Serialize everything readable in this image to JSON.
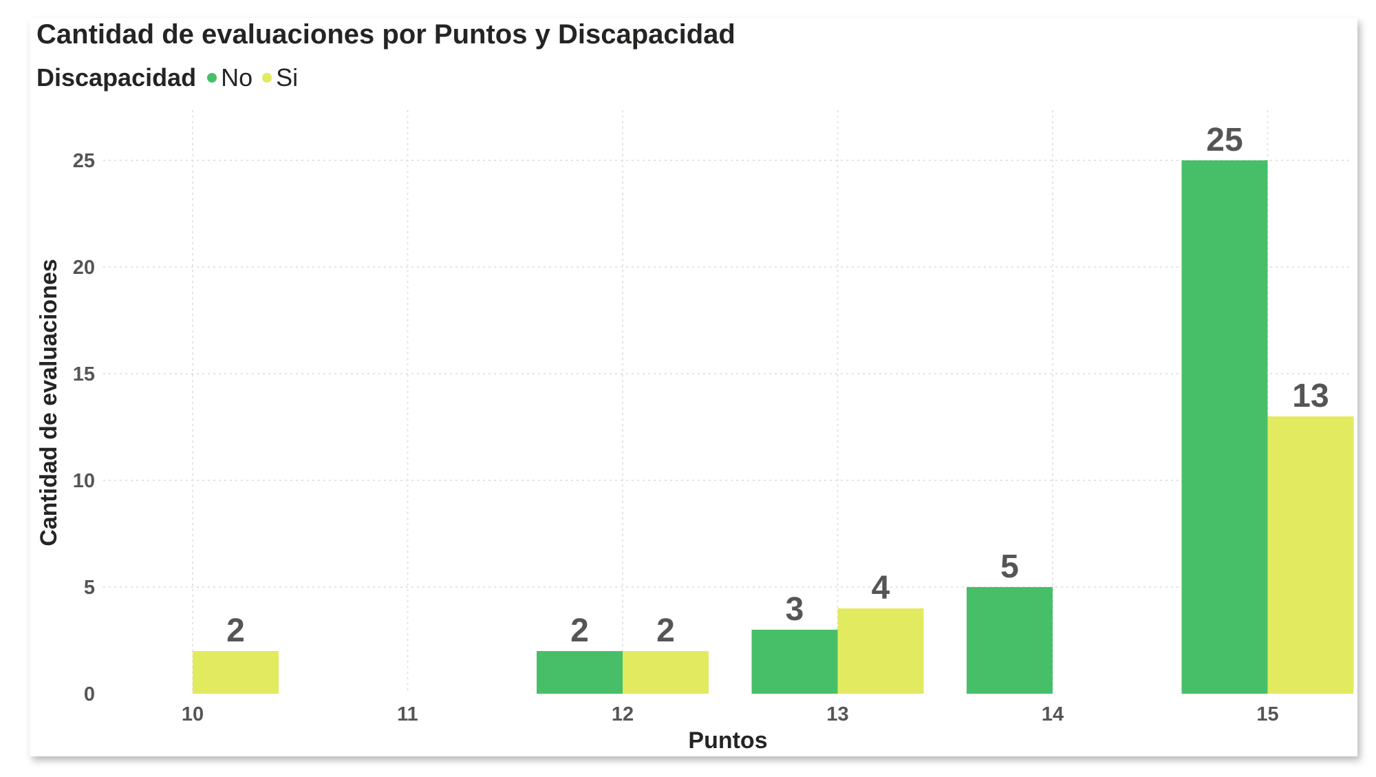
{
  "chart_data": {
    "type": "bar",
    "title": "Cantidad de evaluaciones por Puntos y Discapacidad",
    "legend_title": "Discapacidad",
    "legend_position": "top-left",
    "xlabel": "Puntos",
    "ylabel": "Cantidad de evaluaciones",
    "categories": [
      "10",
      "11",
      "12",
      "13",
      "14",
      "15"
    ],
    "series": [
      {
        "name": "No",
        "color": "#47bf68",
        "values": [
          null,
          null,
          2,
          3,
          5,
          25
        ]
      },
      {
        "name": "Si",
        "color": "#e2ea60",
        "values": [
          2,
          null,
          2,
          4,
          null,
          13
        ]
      }
    ],
    "yticks": [
      0,
      5,
      10,
      15,
      20,
      25
    ],
    "ylim": [
      0,
      25
    ],
    "grid": true
  }
}
